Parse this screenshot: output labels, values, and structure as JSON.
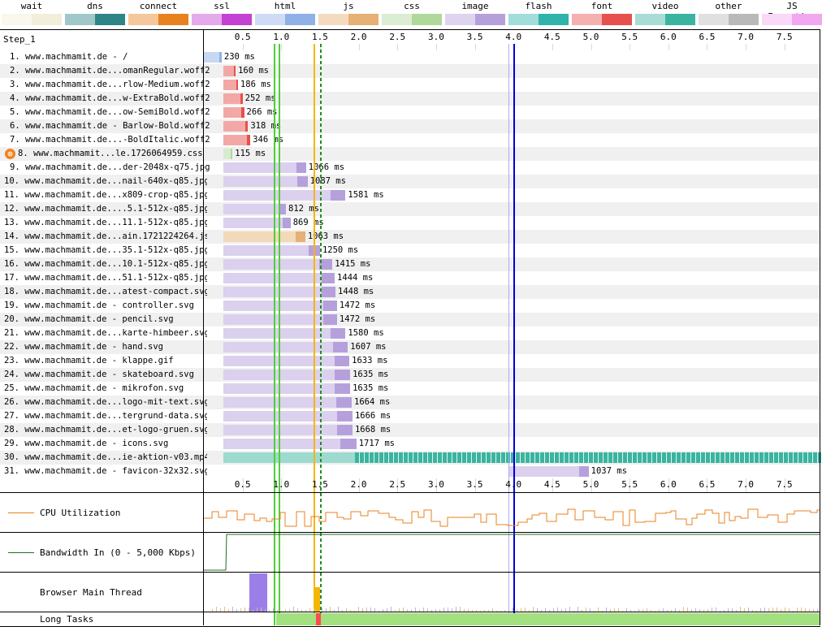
{
  "legend": [
    {
      "label": "wait",
      "color": "#f1eed9"
    },
    {
      "label": "dns",
      "color": "#2e8585"
    },
    {
      "label": "connect",
      "color": "#e8821f"
    },
    {
      "label": "ssl",
      "color": "#c541d3"
    },
    {
      "label": "html",
      "color": "#8fb1e7"
    },
    {
      "label": "js",
      "color": "#e7b074"
    },
    {
      "label": "css",
      "color": "#b0d89a"
    },
    {
      "label": "image",
      "color": "#b6a0dc"
    },
    {
      "label": "flash",
      "color": "#2fb4ac"
    },
    {
      "label": "font",
      "color": "#e6514d"
    },
    {
      "label": "video",
      "color": "#3bb49f"
    },
    {
      "label": "other",
      "color": "#b9b9b9"
    },
    {
      "label": "JS Execution",
      "color": "#f2a8f0"
    }
  ],
  "step_label": "Step_1",
  "axis_ticks": [
    "0.5",
    "1.0",
    "1.5",
    "2.0",
    "2.5",
    "3.0",
    "3.5",
    "4.0",
    "4.5",
    "5.0",
    "5.5",
    "6.0",
    "6.5",
    "7.0",
    "7.5"
  ],
  "requests": [
    {
      "label": "1. www.machmamit.de - /",
      "duration": "230 ms",
      "start": 0.0,
      "end": 0.23,
      "type": "html"
    },
    {
      "label": "2. www.machmamit.de...omanRegular.woff2",
      "duration": "160 ms",
      "start": 0.25,
      "end": 0.41,
      "type": "font"
    },
    {
      "label": "3. www.machmamit.de...rlow-Medium.woff2",
      "duration": "186 ms",
      "start": 0.25,
      "end": 0.44,
      "type": "font"
    },
    {
      "label": "4. www.machmamit.de...w-ExtraBold.woff2",
      "duration": "252 ms",
      "start": 0.25,
      "end": 0.5,
      "type": "font"
    },
    {
      "label": "5. www.machmamit.de...ow-SemiBold.woff2",
      "duration": "266 ms",
      "start": 0.25,
      "end": 0.52,
      "type": "font"
    },
    {
      "label": "6. www.machmamit.de - Barlow-Bold.woff2",
      "duration": "318 ms",
      "start": 0.25,
      "end": 0.57,
      "type": "font"
    },
    {
      "label": "7. www.machmamit.de...-BoldItalic.woff2",
      "duration": "346 ms",
      "start": 0.25,
      "end": 0.6,
      "type": "font"
    },
    {
      "label": "8. www.machmamit...le.1726064959.css",
      "duration": "115 ms",
      "start": 0.25,
      "end": 0.37,
      "type": "css",
      "error": true
    },
    {
      "label": "9. www.machmamit.de...der-2048x-q75.jpg",
      "duration": "1066 ms",
      "start": 0.25,
      "end": 1.32,
      "type": "image"
    },
    {
      "label": "10. www.machmamit.de...nail-640x-q85.jpg",
      "duration": "1087 ms",
      "start": 0.25,
      "end": 1.34,
      "type": "image"
    },
    {
      "label": "11. www.machmamit.de...x809-crop-q85.jpg",
      "duration": "1581 ms",
      "start": 0.25,
      "end": 1.83,
      "type": "image"
    },
    {
      "label": "12. www.machmamit.de....5.1-512x-q85.jpg",
      "duration": "812 ms",
      "start": 0.25,
      "end": 1.06,
      "type": "image"
    },
    {
      "label": "13. www.machmamit.de...11.1-512x-q85.jpg",
      "duration": "869 ms",
      "start": 0.25,
      "end": 1.12,
      "type": "image"
    },
    {
      "label": "14. www.machmamit.de...ain.1721224264.js",
      "duration": "1063 ms",
      "start": 0.25,
      "end": 1.31,
      "type": "js"
    },
    {
      "label": "15. www.machmamit.de...35.1-512x-q85.jpg",
      "duration": "1250 ms",
      "start": 0.25,
      "end": 1.5,
      "type": "image"
    },
    {
      "label": "16. www.machmamit.de...10.1-512x-q85.jpg",
      "duration": "1415 ms",
      "start": 0.25,
      "end": 1.66,
      "type": "image"
    },
    {
      "label": "17. www.machmamit.de...51.1-512x-q85.jpg",
      "duration": "1444 ms",
      "start": 0.25,
      "end": 1.69,
      "type": "image"
    },
    {
      "label": "18. www.machmamit.de...atest-compact.svg",
      "duration": "1448 ms",
      "start": 0.25,
      "end": 1.7,
      "type": "image"
    },
    {
      "label": "19. www.machmamit.de - controller.svg",
      "duration": "1472 ms",
      "start": 0.25,
      "end": 1.72,
      "type": "image"
    },
    {
      "label": "20. www.machmamit.de - pencil.svg",
      "duration": "1472 ms",
      "start": 0.25,
      "end": 1.72,
      "type": "image"
    },
    {
      "label": "21. www.machmamit.de...karte-himbeer.svg",
      "duration": "1580 ms",
      "start": 0.25,
      "end": 1.83,
      "type": "image"
    },
    {
      "label": "22. www.machmamit.de - hand.svg",
      "duration": "1607 ms",
      "start": 0.25,
      "end": 1.86,
      "type": "image"
    },
    {
      "label": "23. www.machmamit.de - klappe.gif",
      "duration": "1633 ms",
      "start": 0.25,
      "end": 1.88,
      "type": "image"
    },
    {
      "label": "24. www.machmamit.de - skateboard.svg",
      "duration": "1635 ms",
      "start": 0.25,
      "end": 1.89,
      "type": "image"
    },
    {
      "label": "25. www.machmamit.de - mikrofon.svg",
      "duration": "1635 ms",
      "start": 0.25,
      "end": 1.89,
      "type": "image"
    },
    {
      "label": "26. www.machmamit.de...logo-mit-text.svg",
      "duration": "1664 ms",
      "start": 0.25,
      "end": 1.91,
      "type": "image"
    },
    {
      "label": "27. www.machmamit.de...tergrund-data.svg",
      "duration": "1666 ms",
      "start": 0.25,
      "end": 1.92,
      "type": "image"
    },
    {
      "label": "28. www.machmamit.de...et-logo-gruen.svg",
      "duration": "1668 ms",
      "start": 0.25,
      "end": 1.92,
      "type": "image"
    },
    {
      "label": "29. www.machmamit.de - icons.svg",
      "duration": "1717 ms",
      "start": 0.25,
      "end": 1.97,
      "type": "image"
    },
    {
      "label": "30. www.machmamit.de...ie-aktion-v03.mp4",
      "duration": "",
      "start": 0.25,
      "end": 7.97,
      "type": "video"
    },
    {
      "label": "31. www.machmamit.de - favicon-32x32.svg",
      "duration": "1037 ms",
      "start": 3.93,
      "end": 4.97,
      "type": "image"
    }
  ],
  "markers": [
    {
      "name": "green1",
      "time": 0.9,
      "color": "#4fcf37"
    },
    {
      "name": "green2",
      "time": 0.97,
      "color": "#4fcf37"
    },
    {
      "name": "orange",
      "time": 1.42,
      "color": "#f2b700"
    },
    {
      "name": "dashed-green",
      "time": 1.5,
      "color": "#1f8f1f"
    },
    {
      "name": "lightblue",
      "time": 3.93,
      "color": "#a9a9ff"
    },
    {
      "name": "blue",
      "time": 4.0,
      "color": "#0000dd"
    }
  ],
  "panels": {
    "cpu_label": "CPU Utilization",
    "bandwidth_label": "Bandwidth In (0 - 5,000 Kbps)",
    "main_thread_label": "Browser Main Thread",
    "long_tasks_label": "Long Tasks"
  }
}
